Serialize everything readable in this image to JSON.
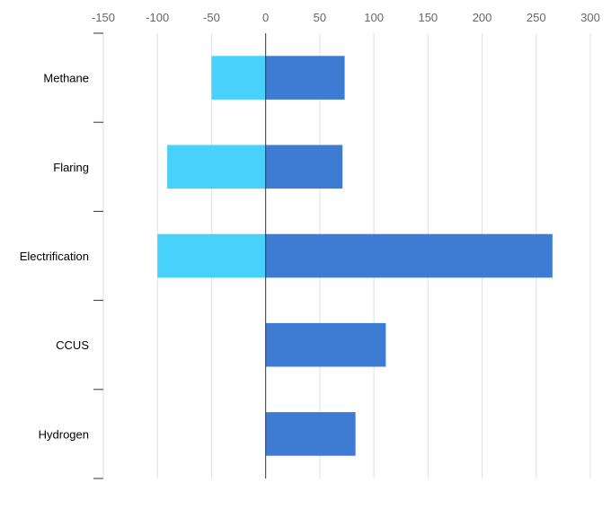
{
  "chart_data": {
    "type": "bar",
    "orientation": "horizontal",
    "stacked": true,
    "title": "",
    "xlabel": "",
    "ylabel": "",
    "categories": [
      "Methane",
      "Flaring",
      "Electrification",
      "CCUS",
      "Hydrogen"
    ],
    "series": [
      {
        "values": [
          -50,
          -91,
          -100,
          0,
          0
        ],
        "color": "#48d2fb"
      },
      {
        "values": [
          73,
          71,
          265,
          111,
          83
        ],
        "color": "#3e7cd4"
      }
    ],
    "xlim": [
      -150,
      300
    ],
    "x_ticks": [
      -150,
      -100,
      -50,
      0,
      50,
      100,
      150,
      200,
      250,
      300
    ],
    "x_tick_labels": [
      "-150",
      "-100",
      "-50",
      "0",
      "50",
      "100",
      "150",
      "200",
      "250",
      "300"
    ],
    "x_axis_position": "top",
    "grid": true,
    "legend": "none"
  }
}
